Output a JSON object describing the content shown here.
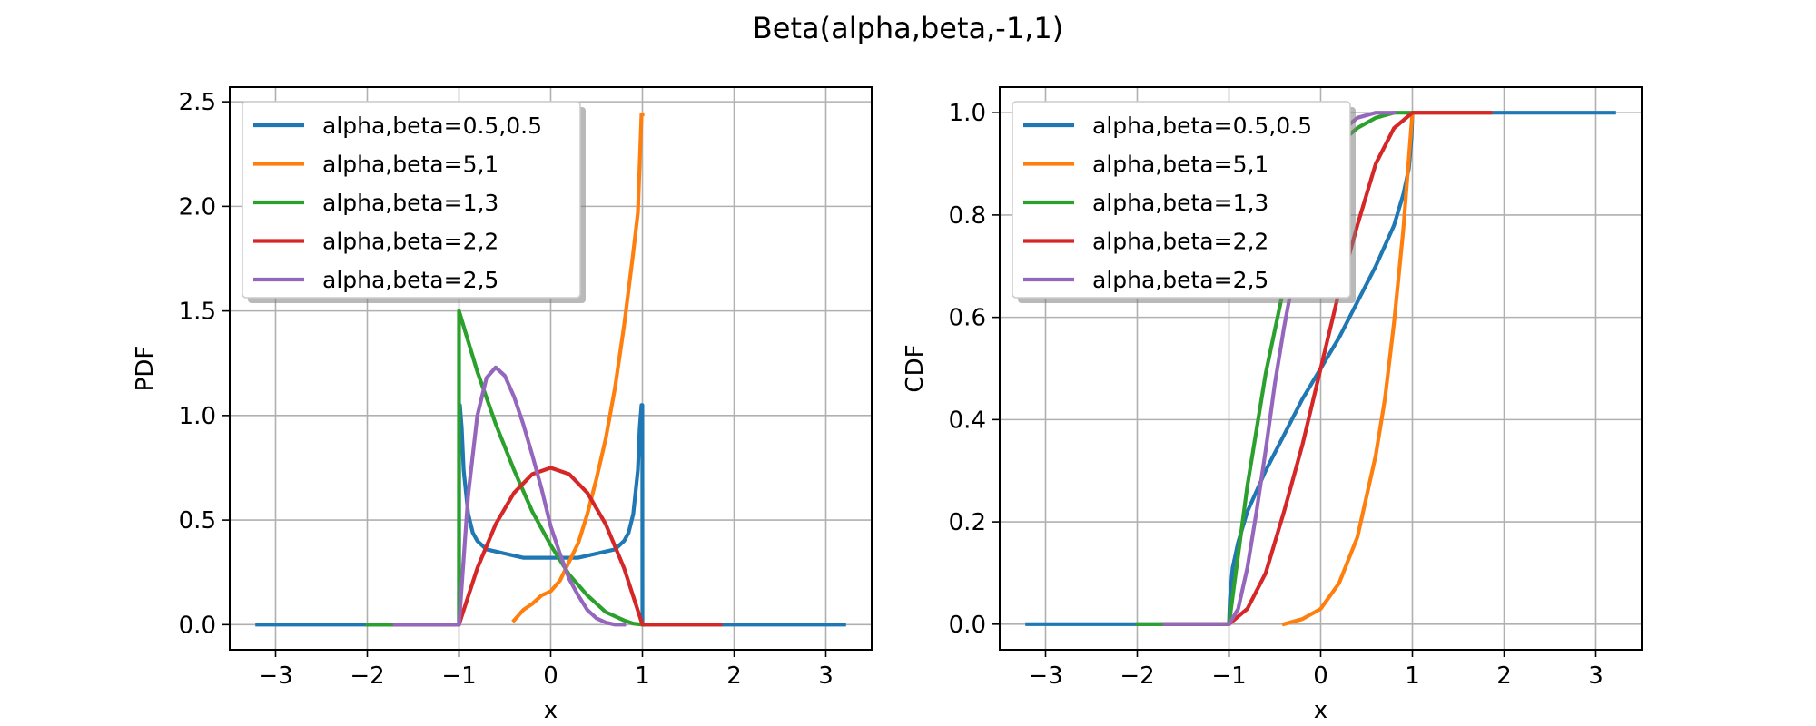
{
  "figure": {
    "suptitle": "Beta(alpha,beta,-1,1)"
  },
  "chart_data": [
    {
      "type": "line",
      "title": "",
      "xlabel": "x",
      "ylabel": "PDF",
      "xlim": [
        -3.5,
        3.5
      ],
      "ylim": [
        -0.12,
        2.57
      ],
      "xticks": [
        -3,
        -2,
        -1,
        0,
        1,
        2,
        3
      ],
      "xtick_labels": [
        "−3",
        "−2",
        "−1",
        "0",
        "1",
        "2",
        "3"
      ],
      "yticks": [
        0.0,
        0.5,
        1.0,
        1.5,
        2.0,
        2.5
      ],
      "ytick_labels": [
        "0.0",
        "0.5",
        "1.0",
        "1.5",
        "2.0",
        "2.5"
      ],
      "grid": true,
      "legend_position": "upper-left",
      "series": [
        {
          "name": "alpha,beta=0.5,0.5",
          "color": "#1f77b4",
          "x": [
            -3.2,
            -1.0,
            -0.999,
            -0.99,
            -0.97,
            -0.95,
            -0.9,
            -0.85,
            -0.8,
            -0.7,
            -0.6,
            -0.5,
            -0.4,
            -0.3,
            -0.2,
            -0.1,
            0.0,
            0.1,
            0.2,
            0.3,
            0.4,
            0.5,
            0.6,
            0.7,
            0.8,
            0.85,
            0.9,
            0.95,
            0.97,
            0.99,
            0.999,
            1.0,
            3.2
          ],
          "y": [
            0.0,
            0.0,
            1.05,
            1.05,
            0.94,
            0.74,
            0.53,
            0.44,
            0.4,
            0.36,
            0.35,
            0.34,
            0.33,
            0.32,
            0.32,
            0.32,
            0.32,
            0.32,
            0.32,
            0.32,
            0.33,
            0.34,
            0.35,
            0.36,
            0.4,
            0.44,
            0.53,
            0.74,
            0.94,
            1.05,
            1.05,
            0.0,
            0.0
          ]
        },
        {
          "name": "alpha,beta=5,1",
          "color": "#ff7f0e",
          "x": [
            -0.4,
            -0.3,
            -0.2,
            -0.1,
            0.0,
            0.1,
            0.2,
            0.3,
            0.4,
            0.5,
            0.6,
            0.7,
            0.8,
            0.9,
            0.95,
            0.99,
            1.0
          ],
          "y": [
            0.02,
            0.07,
            0.1,
            0.14,
            0.16,
            0.21,
            0.3,
            0.39,
            0.53,
            0.7,
            0.89,
            1.13,
            1.43,
            1.78,
            1.97,
            2.44,
            2.44
          ]
        },
        {
          "name": "alpha,beta=1,3",
          "color": "#2ca02c",
          "x": [
            -2.0,
            -1.0,
            -1.0,
            -0.8,
            -0.6,
            -0.4,
            -0.2,
            0.0,
            0.2,
            0.4,
            0.6,
            0.8,
            0.9,
            1.0
          ],
          "y": [
            0.0,
            0.0,
            1.5,
            1.21,
            0.96,
            0.74,
            0.54,
            0.38,
            0.24,
            0.14,
            0.06,
            0.02,
            0.005,
            0.0
          ]
        },
        {
          "name": "alpha,beta=2,2",
          "color": "#d62728",
          "x": [
            -1.7,
            -1.0,
            -0.8,
            -0.6,
            -0.4,
            -0.2,
            0.0,
            0.2,
            0.4,
            0.6,
            0.8,
            1.0,
            1.85
          ],
          "y": [
            0.0,
            0.0,
            0.27,
            0.48,
            0.63,
            0.72,
            0.75,
            0.72,
            0.63,
            0.48,
            0.27,
            0.0,
            0.0
          ]
        },
        {
          "name": "alpha,beta=2,5",
          "color": "#9467bd",
          "x": [
            -1.7,
            -1.0,
            -0.9,
            -0.8,
            -0.7,
            -0.6,
            -0.5,
            -0.4,
            -0.3,
            -0.2,
            -0.1,
            0.0,
            0.1,
            0.2,
            0.3,
            0.4,
            0.5,
            0.6,
            0.7,
            0.8
          ],
          "y": [
            0.0,
            0.0,
            0.62,
            1.0,
            1.18,
            1.23,
            1.19,
            1.09,
            0.96,
            0.81,
            0.65,
            0.47,
            0.34,
            0.22,
            0.14,
            0.07,
            0.03,
            0.01,
            0.0,
            0.0
          ]
        }
      ]
    },
    {
      "type": "line",
      "title": "",
      "xlabel": "x",
      "ylabel": "CDF",
      "xlim": [
        -3.5,
        3.5
      ],
      "ylim": [
        -0.05,
        1.05
      ],
      "xticks": [
        -3,
        -2,
        -1,
        0,
        1,
        2,
        3
      ],
      "xtick_labels": [
        "−3",
        "−2",
        "−1",
        "0",
        "1",
        "2",
        "3"
      ],
      "yticks": [
        0.0,
        0.2,
        0.4,
        0.6,
        0.8,
        1.0
      ],
      "ytick_labels": [
        "0.0",
        "0.2",
        "0.4",
        "0.6",
        "0.8",
        "1.0"
      ],
      "grid": true,
      "legend_position": "upper-left",
      "series": [
        {
          "name": "alpha,beta=0.5,0.5",
          "color": "#1f77b4",
          "x": [
            -3.2,
            -1.0,
            -0.99,
            -0.96,
            -0.9,
            -0.8,
            -0.6,
            -0.4,
            -0.2,
            0.0,
            0.2,
            0.4,
            0.6,
            0.8,
            0.9,
            0.96,
            0.99,
            1.0,
            3.2
          ],
          "y": [
            0.0,
            0.0,
            0.05,
            0.11,
            0.16,
            0.22,
            0.3,
            0.37,
            0.44,
            0.5,
            0.56,
            0.63,
            0.7,
            0.78,
            0.84,
            0.89,
            0.95,
            1.0,
            1.0
          ]
        },
        {
          "name": "alpha,beta=5,1",
          "color": "#ff7f0e",
          "x": [
            -0.4,
            -0.2,
            0.0,
            0.2,
            0.4,
            0.6,
            0.7,
            0.8,
            0.9,
            1.0,
            1.85
          ],
          "y": [
            0.0,
            0.01,
            0.03,
            0.08,
            0.17,
            0.33,
            0.44,
            0.59,
            0.77,
            1.0,
            1.0
          ]
        },
        {
          "name": "alpha,beta=1,3",
          "color": "#2ca02c",
          "x": [
            -2.0,
            -1.0,
            -0.8,
            -0.6,
            -0.4,
            -0.2,
            0.0,
            0.2,
            0.4,
            0.6,
            0.8,
            1.0
          ],
          "y": [
            0.0,
            0.0,
            0.27,
            0.49,
            0.66,
            0.78,
            0.88,
            0.94,
            0.97,
            0.99,
            1.0,
            1.0
          ]
        },
        {
          "name": "alpha,beta=2,2",
          "color": "#d62728",
          "x": [
            -1.7,
            -1.0,
            -0.8,
            -0.6,
            -0.4,
            -0.2,
            0.0,
            0.2,
            0.4,
            0.6,
            0.8,
            1.0,
            1.85
          ],
          "y": [
            0.0,
            0.0,
            0.03,
            0.1,
            0.22,
            0.35,
            0.5,
            0.65,
            0.78,
            0.9,
            0.97,
            1.0,
            1.0
          ]
        },
        {
          "name": "alpha,beta=2,5",
          "color": "#9467bd",
          "x": [
            -1.7,
            -1.0,
            -0.9,
            -0.8,
            -0.7,
            -0.6,
            -0.5,
            -0.4,
            -0.2,
            0.0,
            0.2,
            0.4,
            0.6,
            0.8
          ],
          "y": [
            0.0,
            0.0,
            0.03,
            0.11,
            0.22,
            0.34,
            0.47,
            0.58,
            0.77,
            0.89,
            0.96,
            0.99,
            1.0,
            1.0
          ]
        }
      ]
    }
  ]
}
